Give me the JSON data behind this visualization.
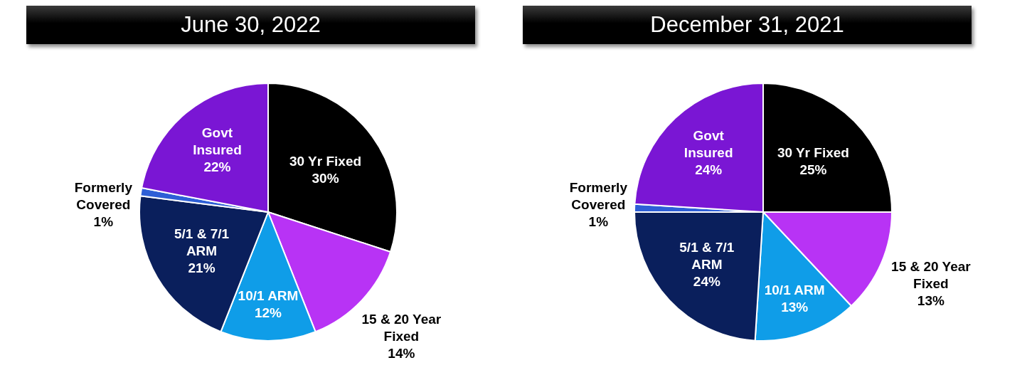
{
  "chart_data": [
    {
      "type": "pie",
      "title": "June 30, 2022",
      "categories": [
        "30 Yr Fixed",
        "15 & 20 Year Fixed",
        "10/1 ARM",
        "5/1 & 7/1 ARM",
        "Formerly Covered",
        "Govt Insured"
      ],
      "values": [
        30,
        14,
        12,
        21,
        1,
        22
      ],
      "value_labels": [
        "30%",
        "14%",
        "12%",
        "21%",
        "1%",
        "22%"
      ],
      "colors": [
        "#000000",
        "#b833f5",
        "#0f9de8",
        "#0a1f5c",
        "#2e5fd6",
        "#7a16d4"
      ]
    },
    {
      "type": "pie",
      "title": "December 31, 2021",
      "categories": [
        "30 Yr Fixed",
        "15 & 20 Year Fixed",
        "10/1 ARM",
        "5/1 & 7/1 ARM",
        "Formerly Covered",
        "Govt Insured"
      ],
      "values": [
        25,
        13,
        13,
        24,
        1,
        24
      ],
      "value_labels": [
        "25%",
        "13%",
        "13%",
        "24%",
        "1%",
        "24%"
      ],
      "colors": [
        "#000000",
        "#b833f5",
        "#0f9de8",
        "#0a1f5c",
        "#2e5fd6",
        "#7a16d4"
      ]
    }
  ]
}
